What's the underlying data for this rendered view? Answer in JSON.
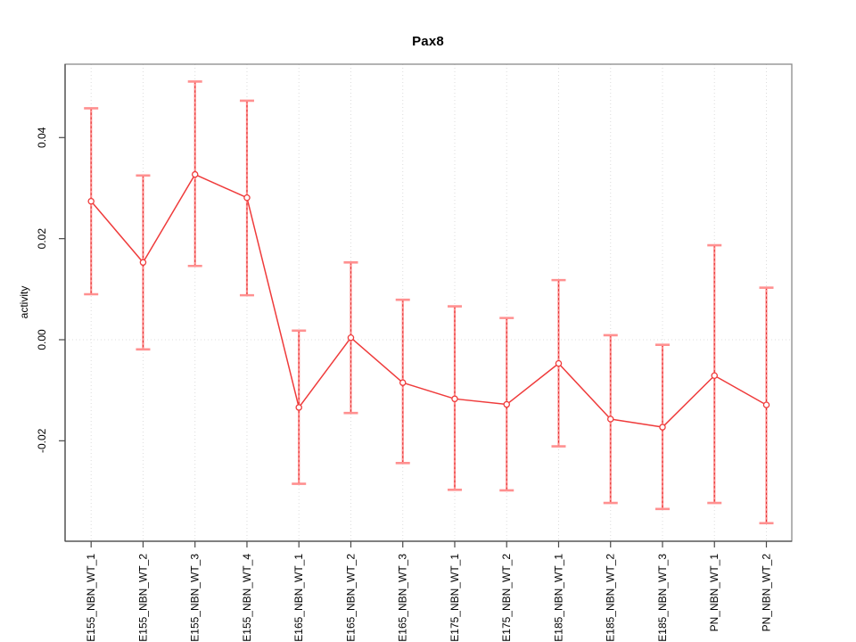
{
  "chart_data": {
    "type": "line",
    "title": "Pax8",
    "xlabel": "",
    "ylabel": "activity",
    "legend": "none",
    "categories": [
      "E155_NBN_WT_1",
      "E155_NBN_WT_2",
      "E155_NBN_WT_3",
      "E155_NBN_WT_4",
      "E165_NBN_WT_1",
      "E165_NBN_WT_2",
      "E165_NBN_WT_3",
      "E175_NBN_WT_1",
      "E175_NBN_WT_2",
      "E185_NBN_WT_1",
      "E185_NBN_WT_2",
      "E185_NBN_WT_3",
      "PN_NBN_WT_1",
      "PN_NBN_WT_2"
    ],
    "series": [
      {
        "name": "Pax8 activity",
        "values": [
          0.0274,
          0.0153,
          0.0327,
          0.0281,
          -0.0134,
          0.0004,
          -0.0085,
          -0.0117,
          -0.0128,
          -0.0047,
          -0.0157,
          -0.0173,
          -0.0071,
          -0.0129
        ],
        "error_upper": [
          0.0458,
          0.0325,
          0.0511,
          0.0473,
          0.0018,
          0.0153,
          0.0079,
          0.0066,
          0.0043,
          0.0118,
          0.0009,
          -0.001,
          0.0187,
          0.0103
        ],
        "error_lower": [
          0.009,
          -0.0019,
          0.0146,
          0.0088,
          -0.0285,
          -0.0145,
          -0.0244,
          -0.0297,
          -0.0298,
          -0.0211,
          -0.0323,
          -0.0335,
          -0.0323,
          -0.0363
        ]
      }
    ],
    "yticks": [
      {
        "value": -0.02,
        "label": "-0.02"
      },
      {
        "value": 0.0,
        "label": "0.00"
      },
      {
        "value": 0.02,
        "label": "0.02"
      },
      {
        "value": 0.04,
        "label": "0.04"
      }
    ],
    "ylim": [
      -0.0399,
      0.0546
    ],
    "grid": {
      "vertical_per_category": true,
      "horizontal_zero_line": true,
      "style": "dotted"
    },
    "marker": "open-circle",
    "colors": {
      "line": "#ef3b3b",
      "error_bar": "#ff9090",
      "error_bar_dash": "#e03030",
      "grid": "#dcdcdc",
      "axis_box": "#8a8a8a",
      "axis_line": "#4a4a4a",
      "tick_text": "#000000",
      "background": "#ffffff"
    }
  }
}
